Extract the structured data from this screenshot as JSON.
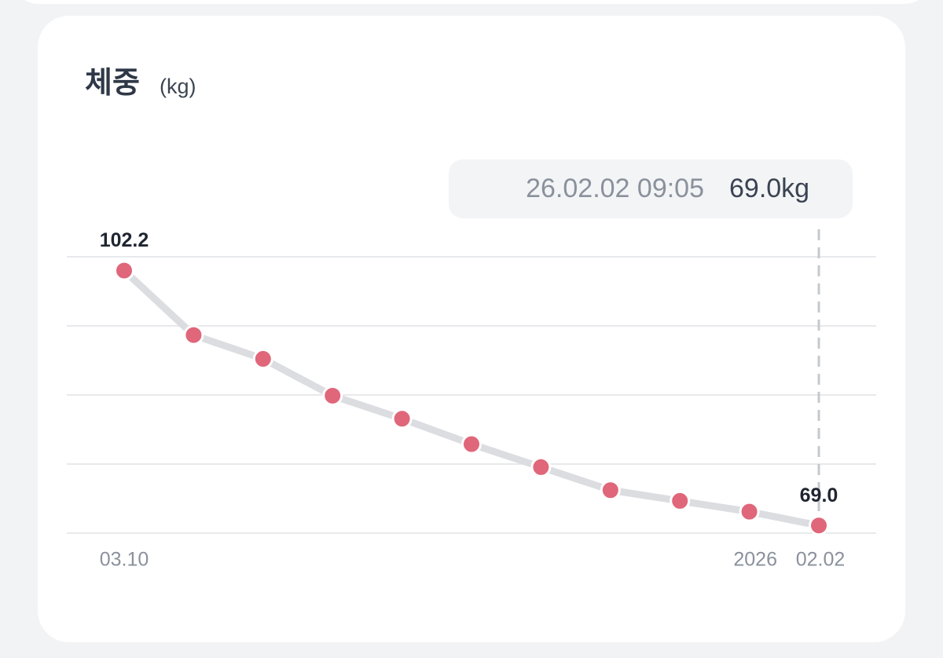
{
  "chart_data": {
    "type": "line",
    "title": "체중",
    "unit": "(kg)",
    "categories": [
      "03.10",
      null,
      null,
      null,
      null,
      null,
      null,
      null,
      null,
      null,
      "02.02"
    ],
    "year_label": "2026",
    "values": [
      102.2,
      93.8,
      90.7,
      85.9,
      82.9,
      79.6,
      76.6,
      73.6,
      72.2,
      70.8,
      69.0
    ],
    "value_labels": [
      "102.2",
      null,
      null,
      null,
      null,
      null,
      null,
      null,
      null,
      null,
      "69.0"
    ],
    "line_color": "#dcdde1",
    "point_color": "#e0667a",
    "ylim": [
      68,
      104
    ],
    "yticks": [
      104,
      95,
      86,
      77,
      68
    ],
    "grid": true,
    "tooltip": {
      "time": "26.02.02 09:05",
      "value": "69.0kg"
    }
  }
}
